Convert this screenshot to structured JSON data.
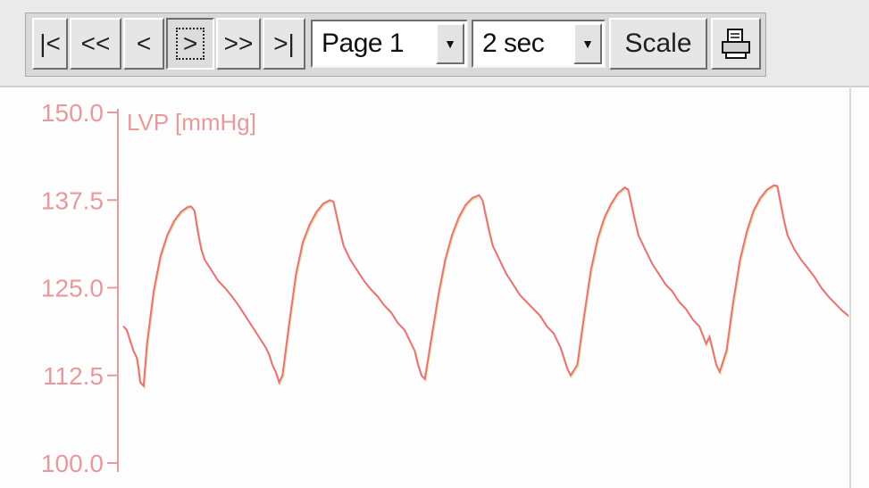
{
  "toolbar": {
    "first_label": "|<",
    "prev_page_label": "<<",
    "prev_label": "<",
    "next_label": ">",
    "next_page_label": ">>",
    "last_label": ">|",
    "page_select": {
      "value": "Page 1"
    },
    "time_select": {
      "value": "2 sec"
    },
    "scale_label": "Scale",
    "print_icon": "printer-icon"
  },
  "colors": {
    "trace": "#e8727a",
    "axis": "#e79a9c",
    "trace_highlight": "#d9d46e"
  },
  "chart_data": {
    "type": "line",
    "ylabel": "LVP [mmHg]",
    "ylim": [
      100.0,
      150.0
    ],
    "yticks": [
      "150.0",
      "137.5",
      "125.0",
      "112.5",
      "100.0"
    ],
    "series": [
      {
        "name": "",
        "points": [
          [
            0.0,
            119.5
          ],
          [
            0.01,
            119.0
          ],
          [
            0.02,
            117.5
          ],
          [
            0.03,
            116.0
          ],
          [
            0.04,
            115.0
          ],
          [
            0.045,
            113.5
          ],
          [
            0.05,
            111.5
          ],
          [
            0.06,
            111.0
          ],
          [
            0.07,
            117.0
          ],
          [
            0.09,
            124.5
          ],
          [
            0.11,
            129.5
          ],
          [
            0.13,
            132.5
          ],
          [
            0.15,
            134.5
          ],
          [
            0.17,
            135.8
          ],
          [
            0.19,
            136.5
          ],
          [
            0.2,
            136.6
          ],
          [
            0.21,
            136.0
          ],
          [
            0.22,
            133.0
          ],
          [
            0.23,
            130.5
          ],
          [
            0.24,
            129.0
          ],
          [
            0.26,
            127.5
          ],
          [
            0.28,
            126.0
          ],
          [
            0.3,
            125.0
          ],
          [
            0.32,
            123.8
          ],
          [
            0.34,
            122.5
          ],
          [
            0.36,
            121.0
          ],
          [
            0.38,
            119.5
          ],
          [
            0.4,
            118.0
          ],
          [
            0.42,
            116.5
          ],
          [
            0.43,
            115.5
          ],
          [
            0.44,
            114.0
          ],
          [
            0.45,
            113.0
          ],
          [
            0.46,
            111.5
          ],
          [
            0.47,
            112.5
          ],
          [
            0.49,
            120.0
          ],
          [
            0.51,
            127.0
          ],
          [
            0.53,
            131.5
          ],
          [
            0.55,
            134.0
          ],
          [
            0.57,
            135.8
          ],
          [
            0.59,
            137.0
          ],
          [
            0.61,
            137.5
          ],
          [
            0.62,
            137.3
          ],
          [
            0.64,
            133.0
          ],
          [
            0.65,
            131.0
          ],
          [
            0.67,
            129.0
          ],
          [
            0.69,
            127.5
          ],
          [
            0.71,
            126.0
          ],
          [
            0.73,
            124.8
          ],
          [
            0.75,
            123.8
          ],
          [
            0.77,
            122.5
          ],
          [
            0.79,
            121.5
          ],
          [
            0.81,
            120.0
          ],
          [
            0.83,
            119.0
          ],
          [
            0.85,
            117.0
          ],
          [
            0.86,
            116.0
          ],
          [
            0.87,
            114.0
          ],
          [
            0.88,
            112.5
          ],
          [
            0.89,
            112.0
          ],
          [
            0.91,
            118.0
          ],
          [
            0.93,
            124.0
          ],
          [
            0.95,
            129.0
          ],
          [
            0.97,
            132.5
          ],
          [
            0.99,
            135.0
          ],
          [
            1.01,
            136.8
          ],
          [
            1.03,
            137.8
          ],
          [
            1.05,
            138.2
          ],
          [
            1.06,
            137.5
          ],
          [
            1.08,
            133.0
          ],
          [
            1.09,
            131.0
          ],
          [
            1.11,
            129.0
          ],
          [
            1.13,
            127.0
          ],
          [
            1.15,
            125.5
          ],
          [
            1.17,
            124.0
          ],
          [
            1.19,
            123.0
          ],
          [
            1.21,
            122.0
          ],
          [
            1.23,
            121.0
          ],
          [
            1.25,
            119.5
          ],
          [
            1.27,
            118.5
          ],
          [
            1.28,
            117.5
          ],
          [
            1.29,
            116.5
          ],
          [
            1.3,
            115.0
          ],
          [
            1.31,
            113.5
          ],
          [
            1.32,
            112.5
          ],
          [
            1.34,
            114.0
          ],
          [
            1.36,
            121.0
          ],
          [
            1.38,
            127.5
          ],
          [
            1.4,
            132.0
          ],
          [
            1.42,
            135.0
          ],
          [
            1.44,
            137.0
          ],
          [
            1.46,
            138.5
          ],
          [
            1.48,
            139.3
          ],
          [
            1.49,
            139.0
          ],
          [
            1.51,
            134.5
          ],
          [
            1.52,
            132.5
          ],
          [
            1.54,
            130.5
          ],
          [
            1.56,
            128.5
          ],
          [
            1.58,
            127.0
          ],
          [
            1.6,
            125.5
          ],
          [
            1.62,
            124.5
          ],
          [
            1.64,
            123.0
          ],
          [
            1.66,
            122.0
          ],
          [
            1.68,
            120.5
          ],
          [
            1.7,
            119.5
          ],
          [
            1.72,
            117.0
          ],
          [
            1.73,
            118.0
          ],
          [
            1.74,
            116.0
          ],
          [
            1.75,
            114.0
          ],
          [
            1.76,
            113.0
          ],
          [
            1.78,
            116.0
          ],
          [
            1.8,
            123.0
          ],
          [
            1.82,
            129.0
          ],
          [
            1.84,
            133.0
          ],
          [
            1.86,
            136.0
          ],
          [
            1.88,
            137.8
          ],
          [
            1.9,
            139.0
          ],
          [
            1.92,
            139.6
          ],
          [
            1.93,
            139.5
          ],
          [
            1.95,
            134.5
          ],
          [
            1.96,
            132.5
          ],
          [
            1.98,
            130.5
          ],
          [
            2.0,
            129.0
          ],
          [
            2.02,
            127.8
          ],
          [
            2.04,
            126.5
          ],
          [
            2.06,
            125.0
          ],
          [
            2.08,
            123.8
          ],
          [
            2.1,
            122.8
          ],
          [
            2.12,
            121.8
          ],
          [
            2.14,
            121.0
          ]
        ]
      }
    ]
  }
}
